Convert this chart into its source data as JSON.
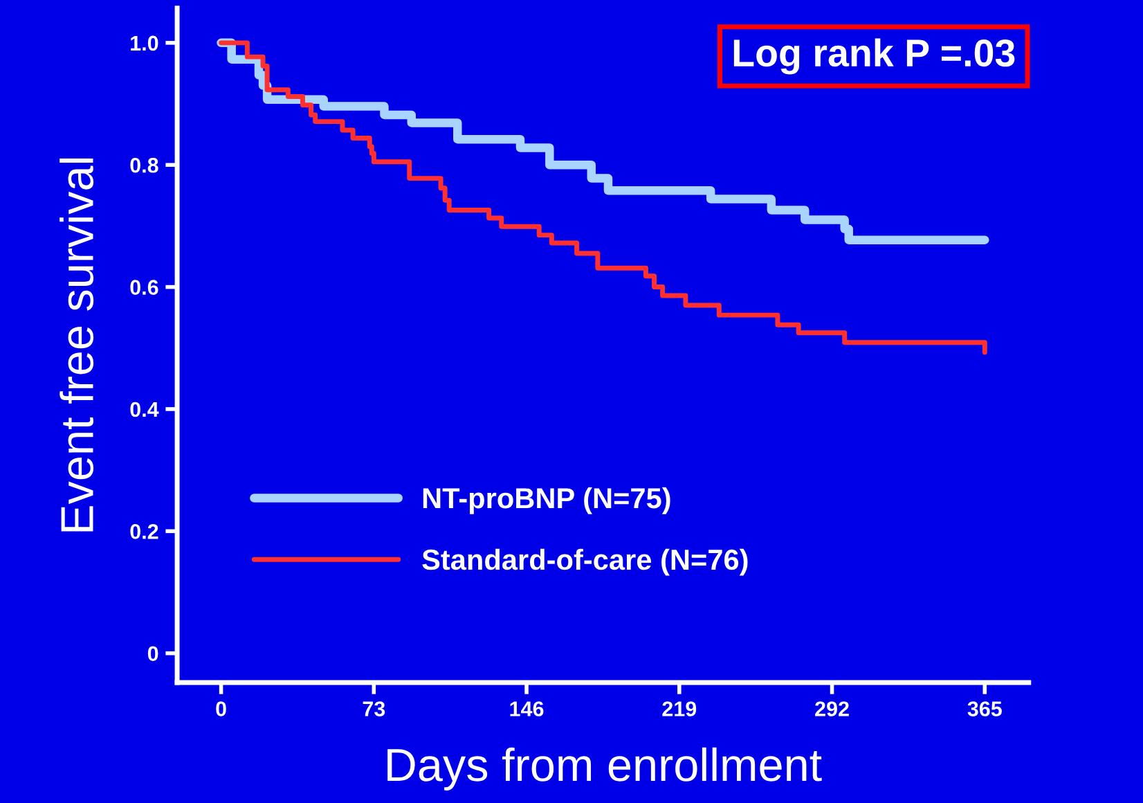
{
  "chart_data": {
    "type": "step",
    "xlabel": "Days from enrollment",
    "ylabel": "Event free survival",
    "annotations": [
      "Log rank P =.03"
    ],
    "xlim": [
      -21,
      386
    ],
    "xticks": [
      0,
      73,
      146,
      219,
      292,
      365
    ],
    "ylim": [
      -0.048,
      1.057
    ],
    "yticks": [
      {
        "value": 0,
        "label": "0"
      },
      {
        "value": 0.2,
        "label": "0.2"
      },
      {
        "value": 0.4,
        "label": "0.4"
      },
      {
        "value": 0.6,
        "label": "0.6"
      },
      {
        "value": 0.8,
        "label": "0.8"
      },
      {
        "value": 1.0,
        "label": "1.0"
      }
    ],
    "grid": false,
    "legend": "bottom left",
    "line_style": "solid",
    "marker": "none",
    "series": [
      {
        "name": "NT-proBNP (N=75)",
        "color": "#a8d4ff",
        "x": [
          0,
          5,
          18,
          20,
          22,
          49,
          78,
          91,
          113,
          143,
          157,
          177,
          185,
          234,
          263,
          279,
          298,
          300,
          365
        ],
        "values": [
          1.0,
          0.973,
          0.947,
          0.93,
          0.907,
          0.896,
          0.882,
          0.869,
          0.842,
          0.828,
          0.8,
          0.778,
          0.758,
          0.744,
          0.726,
          0.71,
          0.695,
          0.677,
          0.677
        ]
      },
      {
        "name": "Standard-of-care (N=76)",
        "color": "#ff3030",
        "x": [
          0,
          12.5,
          20,
          22,
          32,
          39,
          43,
          45,
          58,
          63,
          71,
          72,
          73,
          90,
          105,
          107,
          109,
          128,
          134,
          152,
          158,
          170,
          180,
          203,
          207,
          211,
          222,
          238,
          266,
          276,
          298,
          365
        ],
        "values": [
          1.0,
          0.977,
          0.962,
          0.923,
          0.912,
          0.898,
          0.882,
          0.871,
          0.857,
          0.844,
          0.83,
          0.819,
          0.805,
          0.778,
          0.762,
          0.742,
          0.726,
          0.713,
          0.699,
          0.685,
          0.672,
          0.655,
          0.631,
          0.618,
          0.6,
          0.586,
          0.57,
          0.554,
          0.538,
          0.525,
          0.509,
          0.493
        ]
      }
    ]
  }
}
